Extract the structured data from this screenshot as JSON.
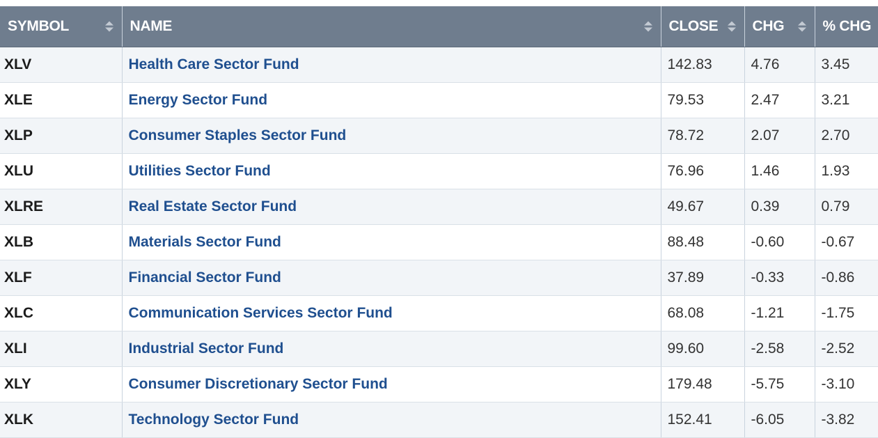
{
  "columns": {
    "symbol": "SYMBOL",
    "name": "NAME",
    "close": "CLOSE",
    "chg": "CHG",
    "pct_chg": "% CHG"
  },
  "sort": {
    "active_column": "pct_chg",
    "direction": "descending"
  },
  "rows": [
    {
      "symbol": "XLV",
      "name": "Health Care Sector Fund",
      "close": "142.83",
      "chg": "4.76",
      "pct_chg": "3.45"
    },
    {
      "symbol": "XLE",
      "name": "Energy Sector Fund",
      "close": "79.53",
      "chg": "2.47",
      "pct_chg": "3.21"
    },
    {
      "symbol": "XLP",
      "name": "Consumer Staples Sector Fund",
      "close": "78.72",
      "chg": "2.07",
      "pct_chg": "2.70"
    },
    {
      "symbol": "XLU",
      "name": "Utilities Sector Fund",
      "close": "76.96",
      "chg": "1.46",
      "pct_chg": "1.93"
    },
    {
      "symbol": "XLRE",
      "name": "Real Estate Sector Fund",
      "close": "49.67",
      "chg": "0.39",
      "pct_chg": "0.79"
    },
    {
      "symbol": "XLB",
      "name": "Materials Sector Fund",
      "close": "88.48",
      "chg": "-0.60",
      "pct_chg": "-0.67"
    },
    {
      "symbol": "XLF",
      "name": "Financial Sector Fund",
      "close": "37.89",
      "chg": "-0.33",
      "pct_chg": "-0.86"
    },
    {
      "symbol": "XLC",
      "name": "Communication Services Sector Fund",
      "close": "68.08",
      "chg": "-1.21",
      "pct_chg": "-1.75"
    },
    {
      "symbol": "XLI",
      "name": "Industrial Sector Fund",
      "close": "99.60",
      "chg": "-2.58",
      "pct_chg": "-2.52"
    },
    {
      "symbol": "XLY",
      "name": "Consumer Discretionary Sector Fund",
      "close": "179.48",
      "chg": "-5.75",
      "pct_chg": "-3.10"
    },
    {
      "symbol": "XLK",
      "name": "Technology Sector Fund",
      "close": "152.41",
      "chg": "-6.05",
      "pct_chg": "-3.82"
    }
  ]
}
